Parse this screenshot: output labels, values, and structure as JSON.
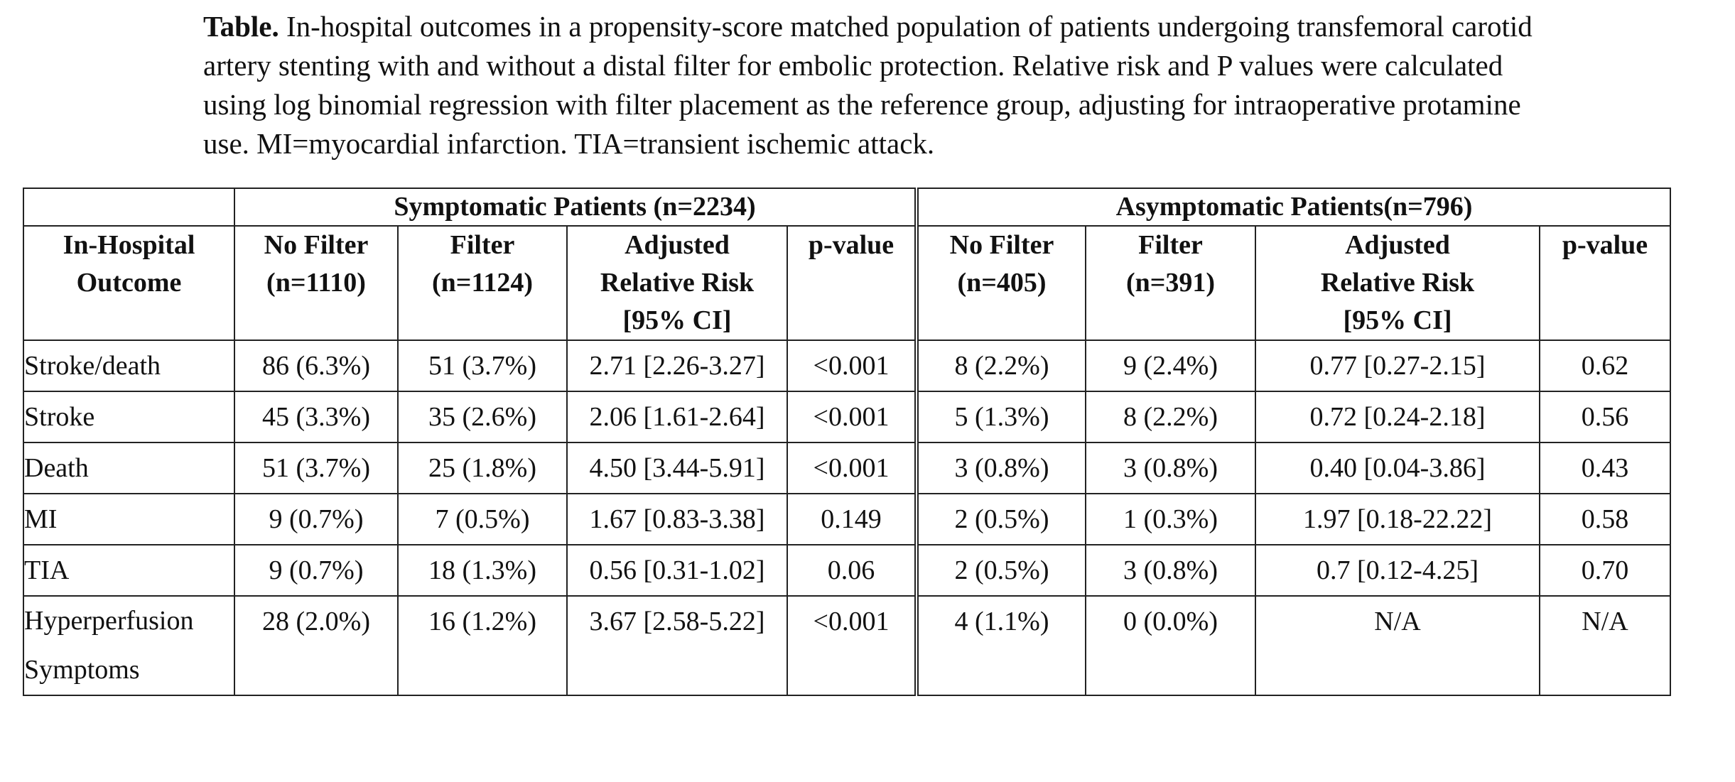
{
  "caption": {
    "label": "Table.",
    "text": " In-hospital outcomes in a propensity-score matched population of patients undergoing transfemoral carotid artery stenting with and without a distal filter for embolic protection. Relative risk and P values were calculated using log binomial regression with filter placement as the reference group, adjusting for intraoperative protamine use. MI=myocardial infarction. TIA=transient ischemic attack."
  },
  "table": {
    "groups": {
      "symptomatic": "Symptomatic Patients (n=2234)",
      "asymptomatic": "Asymptomatic Patients(n=796)"
    },
    "headers": {
      "outcome_l1": "In-Hospital",
      "outcome_l2": "Outcome",
      "s_nofilter_l1": "No Filter",
      "s_nofilter_l2": "(n=1110)",
      "s_filter_l1": "Filter",
      "s_filter_l2": "(n=1124)",
      "s_rr_l1": "Adjusted",
      "s_rr_l2": "Relative Risk",
      "s_rr_l3": "[95% CI]",
      "s_p": "p-value",
      "a_nofilter_l1": "No Filter",
      "a_nofilter_l2": "(n=405)",
      "a_filter_l1": "Filter",
      "a_filter_l2": "(n=391)",
      "a_rr_l1": "Adjusted",
      "a_rr_l2": "Relative Risk",
      "a_rr_l3": "[95% CI]",
      "a_p": "p-value"
    },
    "rows": [
      [
        "Stroke/death",
        "86 (6.3%)",
        "51 (3.7%)",
        "2.71 [2.26-3.27]",
        "<0.001",
        "8 (2.2%)",
        "9 (2.4%)",
        "0.77 [0.27-2.15]",
        "0.62"
      ],
      [
        "Stroke",
        "45 (3.3%)",
        "35 (2.6%)",
        "2.06 [1.61-2.64]",
        "<0.001",
        "5 (1.3%)",
        "8 (2.2%)",
        "0.72 [0.24-2.18]",
        "0.56"
      ],
      [
        "Death",
        "51 (3.7%)",
        "25 (1.8%)",
        "4.50 [3.44-5.91]",
        "<0.001",
        "3 (0.8%)",
        "3 (0.8%)",
        "0.40 [0.04-3.86]",
        "0.43"
      ],
      [
        "MI",
        "9 (0.7%)",
        "7 (0.5%)",
        "1.67 [0.83-3.38]",
        "0.149",
        "2 (0.5%)",
        "1 (0.3%)",
        "1.97 [0.18-22.22]",
        "0.58"
      ],
      [
        "TIA",
        "9 (0.7%)",
        "18 (1.3%)",
        "0.56 [0.31-1.02]",
        "0.06",
        "2 (0.5%)",
        "3 (0.8%)",
        "0.7 [0.12-4.25]",
        "0.70"
      ]
    ],
    "last_row": {
      "label_l1": "Hyperperfusion",
      "label_l2": "Symptoms",
      "values": [
        "28 (2.0%)",
        "16 (1.2%)",
        "3.67 [2.58-5.22]",
        "<0.001",
        "4 (1.1%)",
        "0 (0.0%)",
        "N/A",
        "N/A"
      ]
    }
  }
}
